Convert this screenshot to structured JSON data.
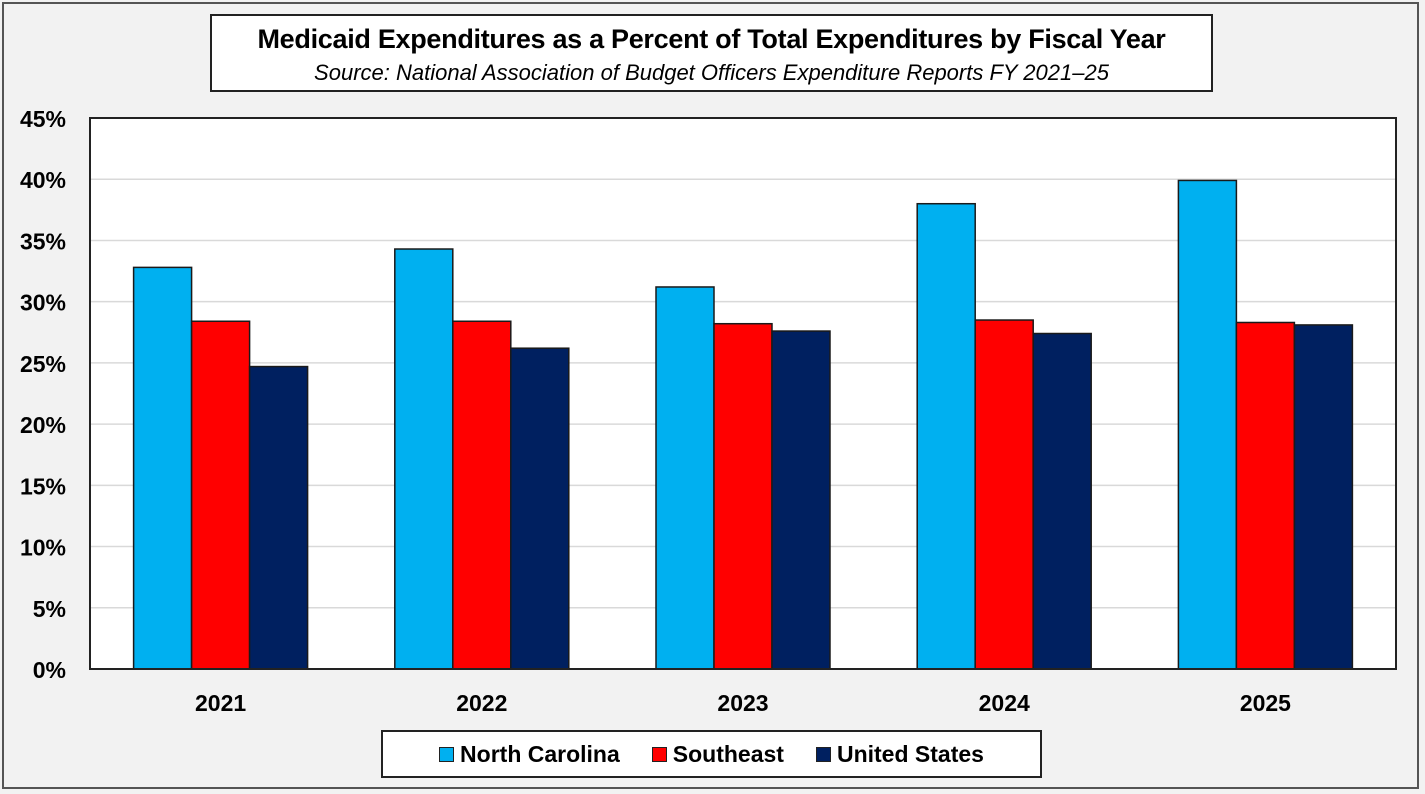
{
  "chart_data": {
    "type": "bar",
    "title": "Medicaid Expenditures as a Percent of Total Expenditures by Fiscal Year",
    "subtitle": "Source: National Association of Budget Officers Expenditure Reports FY 2021–25",
    "xlabel": "",
    "ylabel": "",
    "categories": [
      "2021",
      "2022",
      "2023",
      "2024",
      "2025"
    ],
    "series": [
      {
        "name": "North Carolina",
        "color": "#00b0f0",
        "values": [
          32.8,
          34.3,
          31.2,
          38.0,
          39.9
        ]
      },
      {
        "name": "Southeast",
        "color": "#ff0000",
        "values": [
          28.4,
          28.4,
          28.2,
          28.5,
          28.3
        ]
      },
      {
        "name": "United States",
        "color": "#002060",
        "values": [
          24.7,
          26.2,
          27.6,
          27.4,
          28.1
        ]
      }
    ],
    "ylim": [
      0,
      45
    ],
    "yticks": [
      0,
      5,
      10,
      15,
      20,
      25,
      30,
      35,
      40,
      45
    ],
    "ytick_labels": [
      "0%",
      "5%",
      "10%",
      "15%",
      "20%",
      "25%",
      "30%",
      "35%",
      "40%",
      "45%"
    ],
    "grid": true,
    "legend_position": "bottom"
  }
}
